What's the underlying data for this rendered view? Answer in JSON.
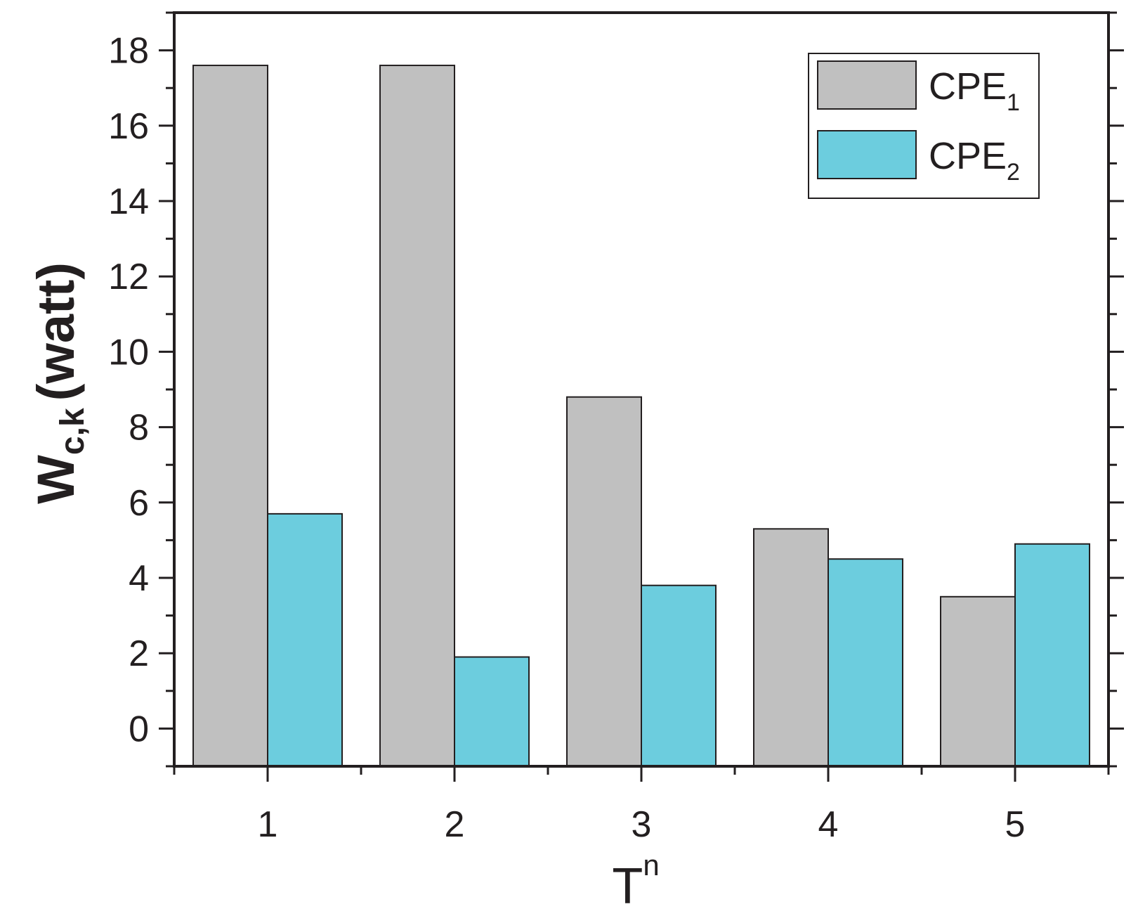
{
  "chart_data": {
    "type": "bar",
    "categories": [
      "1",
      "2",
      "3",
      "4",
      "5"
    ],
    "series": [
      {
        "name": "CPE",
        "subscript": "1",
        "color": "#c0c0c0",
        "values": [
          17.6,
          17.6,
          8.8,
          5.3,
          3.5
        ]
      },
      {
        "name": "CPE",
        "subscript": "2",
        "color": "#6ccdde",
        "values": [
          5.7,
          1.9,
          3.8,
          4.5,
          4.9
        ]
      }
    ],
    "xlabel": {
      "main": "T",
      "sup": "n"
    },
    "ylabel": {
      "main": "W",
      "sub": "c,k",
      "unit": "(watt)"
    },
    "yticks": [
      "0",
      "2",
      "4",
      "6",
      "8",
      "10",
      "12",
      "14",
      "16",
      "18"
    ],
    "ylim": [
      -1,
      19
    ],
    "legend_position": "top-right",
    "grid": false,
    "axis_color": "#231f20"
  }
}
